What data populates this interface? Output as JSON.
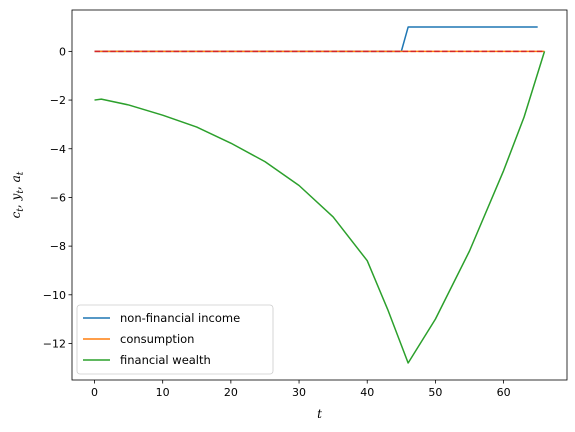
{
  "chart_data": {
    "type": "line",
    "xlabel": "t",
    "ylabel": "c_t, y_t, a_t",
    "xlim": [
      -3.3,
      69.3
    ],
    "ylim": [
      -13.5,
      1.7
    ],
    "xticks": [
      0,
      10,
      20,
      30,
      40,
      50,
      60
    ],
    "yticks": [
      0,
      -2,
      -4,
      -6,
      -8,
      -10,
      -12
    ],
    "grid": false,
    "legend_position": "lower-left",
    "series": [
      {
        "name": "non-financial income",
        "color": "#1f77b4",
        "dash": "solid",
        "x": [
          0,
          45,
          46,
          65
        ],
        "y": [
          0,
          0,
          1,
          1
        ]
      },
      {
        "name": "consumption",
        "color": "#ff7f0e",
        "dash": "solid",
        "x": [
          0,
          66
        ],
        "y": [
          0,
          0
        ]
      },
      {
        "name": "",
        "color": "#d62728",
        "dash": "dashed",
        "x": [
          0,
          66
        ],
        "y": [
          0,
          0
        ]
      },
      {
        "name": "financial wealth",
        "color": "#2ca02c",
        "dash": "solid",
        "x": [
          0,
          1,
          5,
          10,
          15,
          20,
          25,
          30,
          35,
          40,
          43,
          46,
          50,
          55,
          60,
          63,
          66
        ],
        "y": [
          -2.0,
          -1.96,
          -2.2,
          -2.62,
          -3.11,
          -3.77,
          -4.53,
          -5.51,
          -6.8,
          -8.6,
          -10.6,
          -12.8,
          -11.0,
          -8.2,
          -4.9,
          -2.7,
          0.0
        ]
      }
    ]
  }
}
